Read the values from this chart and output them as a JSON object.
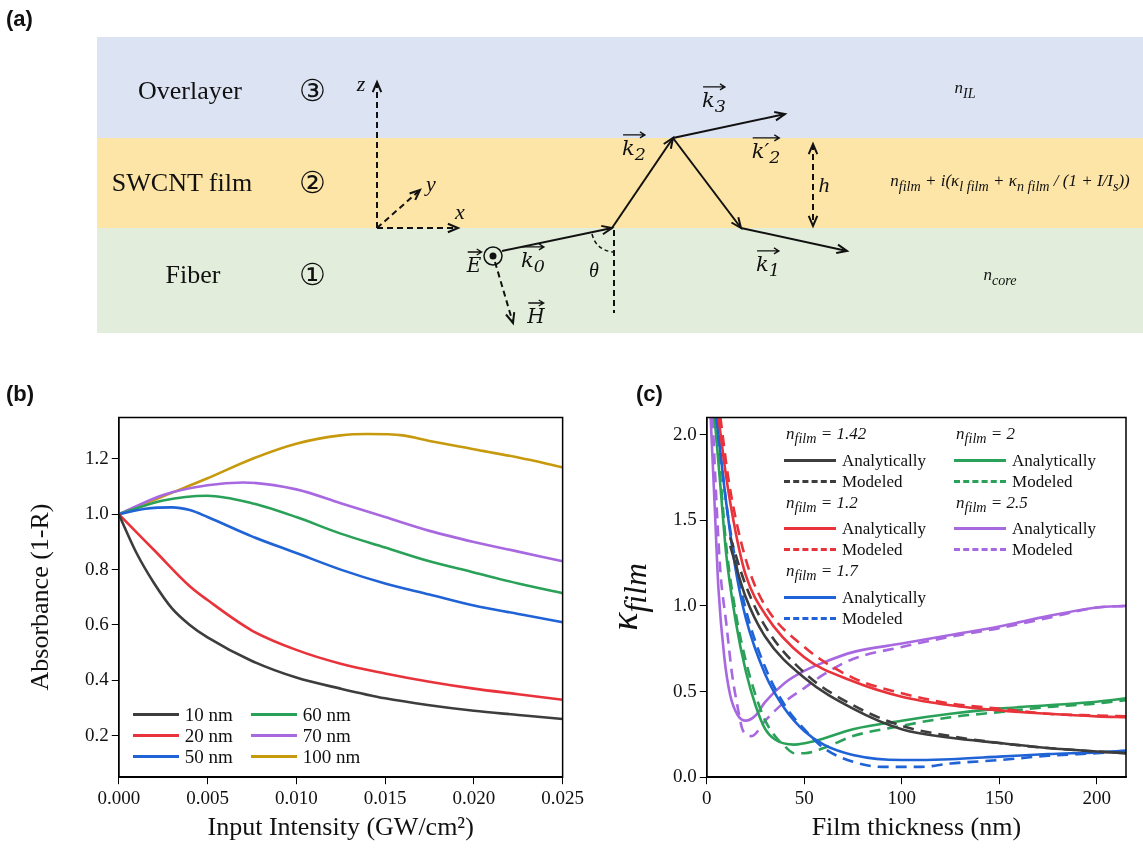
{
  "chart_data": [
    {
      "type": "other",
      "title": "(a)",
      "annotations": [
        "Overlayer",
        "③",
        "SWCNT film",
        "②",
        "Fiber",
        "①",
        "z",
        "y",
        "x",
        "E",
        "H",
        "k$_{0}$",
        "θ",
        "k$_{2}$",
        "k$_{3}$",
        "k′$_{2}$",
        "k$_{1}$",
        "h",
        "n$_{IL}$",
        "n$_{film}$ + i(κ$_{l film}$ + κ$_{n film}$ / (1 + I/I$_{s}$))",
        "n$_{core}$"
      ]
    },
    {
      "type": "line",
      "title": "(b)",
      "xlabel": "Input Intensity (GW/cm²)",
      "ylabel": "Absorbance (1-R)",
      "legend": "bottom left",
      "xlim": [
        0,
        0.025
      ],
      "ylim": [
        0.05,
        1.35
      ],
      "xticks": [
        {
          "value": 0,
          "label": "0.000"
        },
        0.005,
        {
          "value": 0.01,
          "label": "0.010"
        },
        0.015,
        {
          "value": 0.02,
          "label": "0.020"
        },
        0.025
      ],
      "yticks": [
        0.2,
        0.4,
        0.6,
        0.8,
        {
          "value": 1,
          "label": "1.0"
        },
        1.2
      ],
      "series": [
        {
          "name": "10 nm",
          "color": "#3d3d3d",
          "x": [
            0,
            0.001,
            0.002,
            0.003,
            0.004,
            0.005,
            0.0075,
            0.01,
            0.0125,
            0.015,
            0.0175,
            0.02,
            0.0225,
            0.025
          ],
          "values": [
            1.0,
            0.86,
            0.75,
            0.66,
            0.6,
            0.555,
            0.47,
            0.41,
            0.37,
            0.335,
            0.31,
            0.29,
            0.275,
            0.26
          ]
        },
        {
          "name": "20 nm",
          "color": "#e8333a",
          "x": [
            0,
            0.002,
            0.004,
            0.005,
            0.0075,
            0.01,
            0.0125,
            0.015,
            0.0175,
            0.02,
            0.0225,
            0.025
          ],
          "values": [
            1.0,
            0.87,
            0.74,
            0.69,
            0.58,
            0.51,
            0.46,
            0.425,
            0.395,
            0.37,
            0.35,
            0.33
          ]
        },
        {
          "name": "50 nm",
          "color": "#1f63d6",
          "x": [
            0,
            0.0015,
            0.003,
            0.004,
            0.005,
            0.0075,
            0.01,
            0.0125,
            0.015,
            0.0175,
            0.02,
            0.0225,
            0.025
          ],
          "values": [
            1.0,
            1.02,
            1.025,
            1.015,
            0.99,
            0.92,
            0.86,
            0.8,
            0.75,
            0.71,
            0.67,
            0.64,
            0.61
          ]
        },
        {
          "name": "60 nm",
          "color": "#2aa158",
          "x": [
            0,
            0.0025,
            0.005,
            0.0075,
            0.01,
            0.0125,
            0.015,
            0.0175,
            0.02,
            0.0225,
            0.025
          ],
          "values": [
            1.0,
            1.05,
            1.067,
            1.04,
            0.99,
            0.93,
            0.88,
            0.83,
            0.79,
            0.75,
            0.715
          ]
        },
        {
          "name": "70 nm",
          "color": "#a868e0",
          "x": [
            0,
            0.0025,
            0.005,
            0.007,
            0.01,
            0.0125,
            0.015,
            0.0175,
            0.02,
            0.0225,
            0.025
          ],
          "values": [
            1.0,
            1.07,
            1.105,
            1.115,
            1.09,
            1.04,
            0.99,
            0.94,
            0.9,
            0.865,
            0.83
          ]
        },
        {
          "name": "100 nm",
          "color": "#c79a0e",
          "x": [
            0,
            0.0025,
            0.005,
            0.0075,
            0.01,
            0.0125,
            0.014,
            0.016,
            0.0175,
            0.02,
            0.0225,
            0.025
          ],
          "values": [
            1.0,
            1.065,
            1.13,
            1.2,
            1.255,
            1.285,
            1.29,
            1.285,
            1.265,
            1.235,
            1.205,
            1.17
          ]
        }
      ]
    },
    {
      "type": "line",
      "title": "(c)",
      "xlabel": "Film thickness (nm)",
      "ylabel": "κ$_{film}$",
      "legend": "top right",
      "annotations": [
        "n$_{film}$ = 1.42",
        "n$_{film}$ = 1.2",
        "n$_{film}$ = 1.7",
        "n$_{film}$ = 2",
        "n$_{film}$ = 2.5"
      ],
      "xlim": [
        0,
        215
      ],
      "ylim": [
        0,
        2.1
      ],
      "xticks": [
        0,
        50,
        100,
        150,
        200
      ],
      "yticks": [
        {
          "value": 0,
          "label": "0.0"
        },
        0.5,
        {
          "value": 1,
          "label": "1.0"
        },
        1.5,
        {
          "value": 2,
          "label": "2.0"
        }
      ],
      "series": [
        {
          "name": "Analytically",
          "color": "#3d3d3d",
          "line_style": "solid",
          "x": [
            12,
            20,
            30,
            50,
            75,
            100,
            125,
            150,
            175,
            200,
            215
          ],
          "values": [
            1.35,
            1.05,
            0.82,
            0.58,
            0.4,
            0.28,
            0.23,
            0.2,
            0.17,
            0.15,
            0.14
          ]
        },
        {
          "name": "Modeled",
          "color": "#3d3d3d",
          "line_style": "dashed",
          "x": [
            12,
            20,
            30,
            50,
            75,
            100,
            125,
            150,
            175,
            200,
            215
          ],
          "values": [
            1.4,
            1.12,
            0.88,
            0.61,
            0.42,
            0.3,
            0.24,
            0.2,
            0.17,
            0.15,
            0.14
          ]
        },
        {
          "name": "Analytically",
          "color": "#e8333a",
          "line_style": "solid",
          "x": [
            6,
            10,
            15,
            20,
            30,
            50,
            75,
            100,
            125,
            150,
            175,
            200,
            215
          ],
          "values": [
            2.1,
            1.75,
            1.42,
            1.18,
            0.95,
            0.7,
            0.56,
            0.47,
            0.42,
            0.39,
            0.37,
            0.355,
            0.35
          ]
        },
        {
          "name": "Modeled",
          "color": "#e8333a",
          "line_style": "dashed",
          "x": [
            7,
            11,
            16,
            22,
            30,
            50,
            75,
            100,
            125,
            150,
            175,
            200,
            215
          ],
          "values": [
            2.1,
            1.75,
            1.45,
            1.2,
            1.0,
            0.76,
            0.58,
            0.49,
            0.43,
            0.4,
            0.37,
            0.36,
            0.355
          ]
        },
        {
          "name": "Analytically",
          "color": "#1f63d6",
          "line_style": "solid",
          "x": [
            5,
            10,
            15,
            20,
            30,
            40,
            50,
            60,
            75,
            100,
            125,
            150,
            175,
            200,
            215
          ],
          "values": [
            2.1,
            1.6,
            1.2,
            0.93,
            0.6,
            0.4,
            0.27,
            0.19,
            0.13,
            0.1,
            0.105,
            0.12,
            0.135,
            0.145,
            0.155
          ]
        },
        {
          "name": "Modeled",
          "color": "#1f63d6",
          "line_style": "dashed",
          "x": [
            5,
            10,
            15,
            20,
            30,
            40,
            50,
            60,
            75,
            90,
            110,
            125,
            150,
            175,
            200,
            215
          ],
          "values": [
            2.1,
            1.6,
            1.25,
            0.98,
            0.64,
            0.42,
            0.28,
            0.17,
            0.09,
            0.06,
            0.06,
            0.08,
            0.1,
            0.125,
            0.14,
            0.15
          ]
        },
        {
          "name": "Analytically",
          "color": "#2aa158",
          "line_style": "solid",
          "x": [
            4,
            7,
            10,
            15,
            20,
            25,
            30,
            35,
            45,
            55,
            75,
            100,
            125,
            150,
            175,
            200,
            215
          ],
          "values": [
            2.1,
            1.7,
            1.3,
            0.9,
            0.62,
            0.42,
            0.28,
            0.22,
            0.19,
            0.21,
            0.28,
            0.33,
            0.37,
            0.4,
            0.42,
            0.44,
            0.46
          ]
        },
        {
          "name": "Modeled",
          "color": "#2aa158",
          "line_style": "dashed",
          "x": [
            4,
            7,
            10,
            15,
            20,
            25,
            30,
            35,
            40,
            45,
            50,
            60,
            75,
            100,
            125,
            150,
            175,
            200,
            215
          ],
          "values": [
            2.1,
            1.75,
            1.35,
            0.95,
            0.68,
            0.48,
            0.33,
            0.24,
            0.18,
            0.14,
            0.14,
            0.17,
            0.24,
            0.3,
            0.35,
            0.38,
            0.41,
            0.43,
            0.45
          ]
        },
        {
          "name": "Analytically",
          "color": "#a868e0",
          "line_style": "solid",
          "x": [
            2,
            4,
            6,
            9,
            12,
            16,
            20,
            25,
            30,
            40,
            50,
            60,
            75,
            100,
            125,
            150,
            175,
            200,
            215
          ],
          "values": [
            2.1,
            1.6,
            1.1,
            0.7,
            0.48,
            0.36,
            0.33,
            0.36,
            0.44,
            0.55,
            0.62,
            0.67,
            0.73,
            0.78,
            0.83,
            0.88,
            0.94,
            0.99,
            1.0
          ]
        },
        {
          "name": "Modeled",
          "color": "#a868e0",
          "line_style": "dashed",
          "x": [
            3,
            5,
            7,
            10,
            13,
            16,
            18,
            20,
            23,
            30,
            40,
            50,
            60,
            75,
            100,
            125,
            150,
            175,
            200,
            215
          ],
          "values": [
            2.1,
            1.6,
            1.2,
            0.9,
            0.6,
            0.4,
            0.29,
            0.25,
            0.24,
            0.33,
            0.44,
            0.52,
            0.6,
            0.69,
            0.76,
            0.82,
            0.87,
            0.93,
            0.99,
            1.0
          ]
        }
      ]
    }
  ]
}
